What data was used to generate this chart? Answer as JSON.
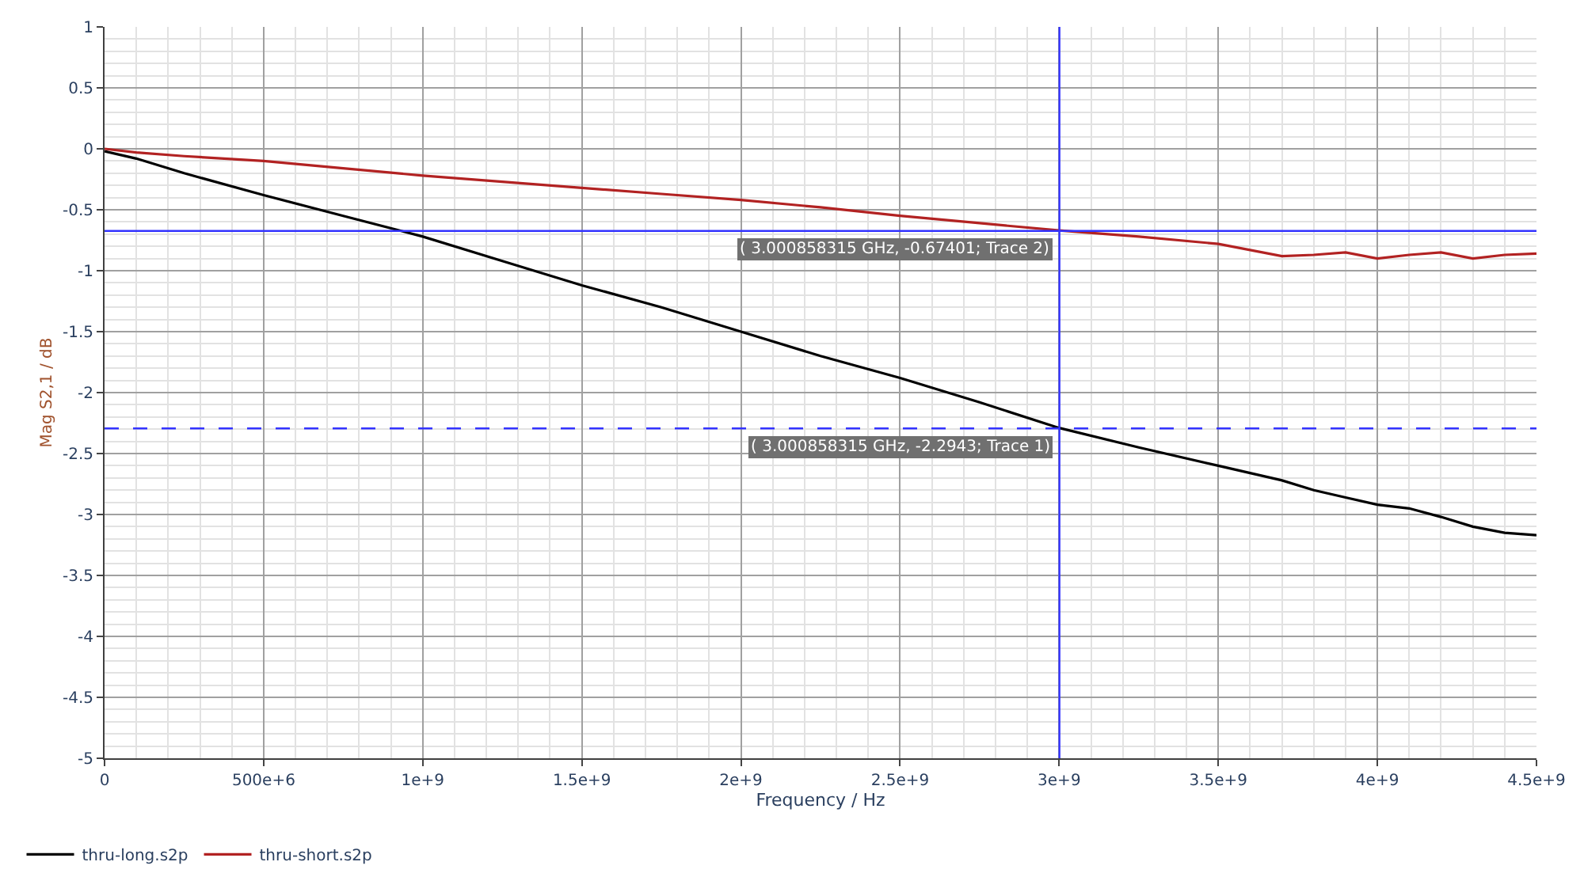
{
  "chart_data": {
    "type": "line",
    "xlabel": "Frequency / Hz",
    "ylabel": "Mag S2,1 / dB",
    "xlim": [
      0,
      4500000000
    ],
    "ylim": [
      -5,
      1
    ],
    "xticks": [
      0,
      {
        "value": 500000000,
        "label": "500e+6"
      },
      {
        "value": 1000000000,
        "label": "1e+9"
      },
      {
        "value": 1500000000,
        "label": "1.5e+9"
      },
      {
        "value": 2000000000,
        "label": "2e+9"
      },
      {
        "value": 2500000000,
        "label": "2.5e+9"
      },
      {
        "value": 3000000000,
        "label": "3e+9"
      },
      {
        "value": 3500000000,
        "label": "3.5e+9"
      },
      {
        "value": 4000000000,
        "label": "4e+9"
      },
      {
        "value": 4500000000,
        "label": "4.5e+9"
      }
    ],
    "yticks": [
      -5,
      -4.5,
      -4,
      -3.5,
      -3,
      -2.5,
      -2,
      -1.5,
      -1,
      -0.5,
      0,
      0.5,
      1
    ],
    "grid": true,
    "legend": "bottom left",
    "line_style": "solid",
    "marker": "none",
    "x": [
      0,
      100000000,
      250000000,
      500000000,
      750000000,
      1000000000,
      1250000000,
      1500000000,
      1750000000,
      2000000000,
      2250000000,
      2500000000,
      2750000000,
      3000000000,
      3250000000,
      3500000000,
      3700000000,
      3800000000,
      3900000000,
      4000000000,
      4100000000,
      4200000000,
      4300000000,
      4400000000,
      4500000000
    ],
    "series": [
      {
        "name": "thru-long.s2p",
        "color": "#000000",
        "values": [
          -0.02,
          -0.08,
          -0.2,
          -0.38,
          -0.55,
          -0.72,
          -0.92,
          -1.12,
          -1.3,
          -1.5,
          -1.7,
          -1.88,
          -2.08,
          -2.29,
          -2.45,
          -2.6,
          -2.72,
          -2.8,
          -2.86,
          -2.92,
          -2.95,
          -3.02,
          -3.1,
          -3.15,
          -3.17
        ]
      },
      {
        "name": "thru-short.s2p",
        "color": "#b22222",
        "values": [
          0,
          -0.03,
          -0.06,
          -0.1,
          -0.16,
          -0.22,
          -0.27,
          -0.32,
          -0.37,
          -0.42,
          -0.48,
          -0.55,
          -0.61,
          -0.67,
          -0.72,
          -0.78,
          -0.88,
          -0.87,
          -0.85,
          -0.9,
          -0.87,
          -0.85,
          -0.9,
          -0.87,
          -0.86
        ]
      }
    ],
    "ref_lines": [
      {
        "axis": "x",
        "value": 3000858315,
        "color": "#3333ff",
        "line_style": "solid"
      },
      {
        "axis": "y",
        "value": -0.67401,
        "color": "#3333ff",
        "line_style": "solid"
      },
      {
        "axis": "y",
        "value": -2.2943,
        "color": "#3333ff",
        "line_style": "dashed"
      }
    ],
    "annotations": [
      "( 3.000858315 GHz, -0.67401; Trace 2)",
      "( 3.000858315 GHz, -2.2943; Trace 1)"
    ]
  }
}
